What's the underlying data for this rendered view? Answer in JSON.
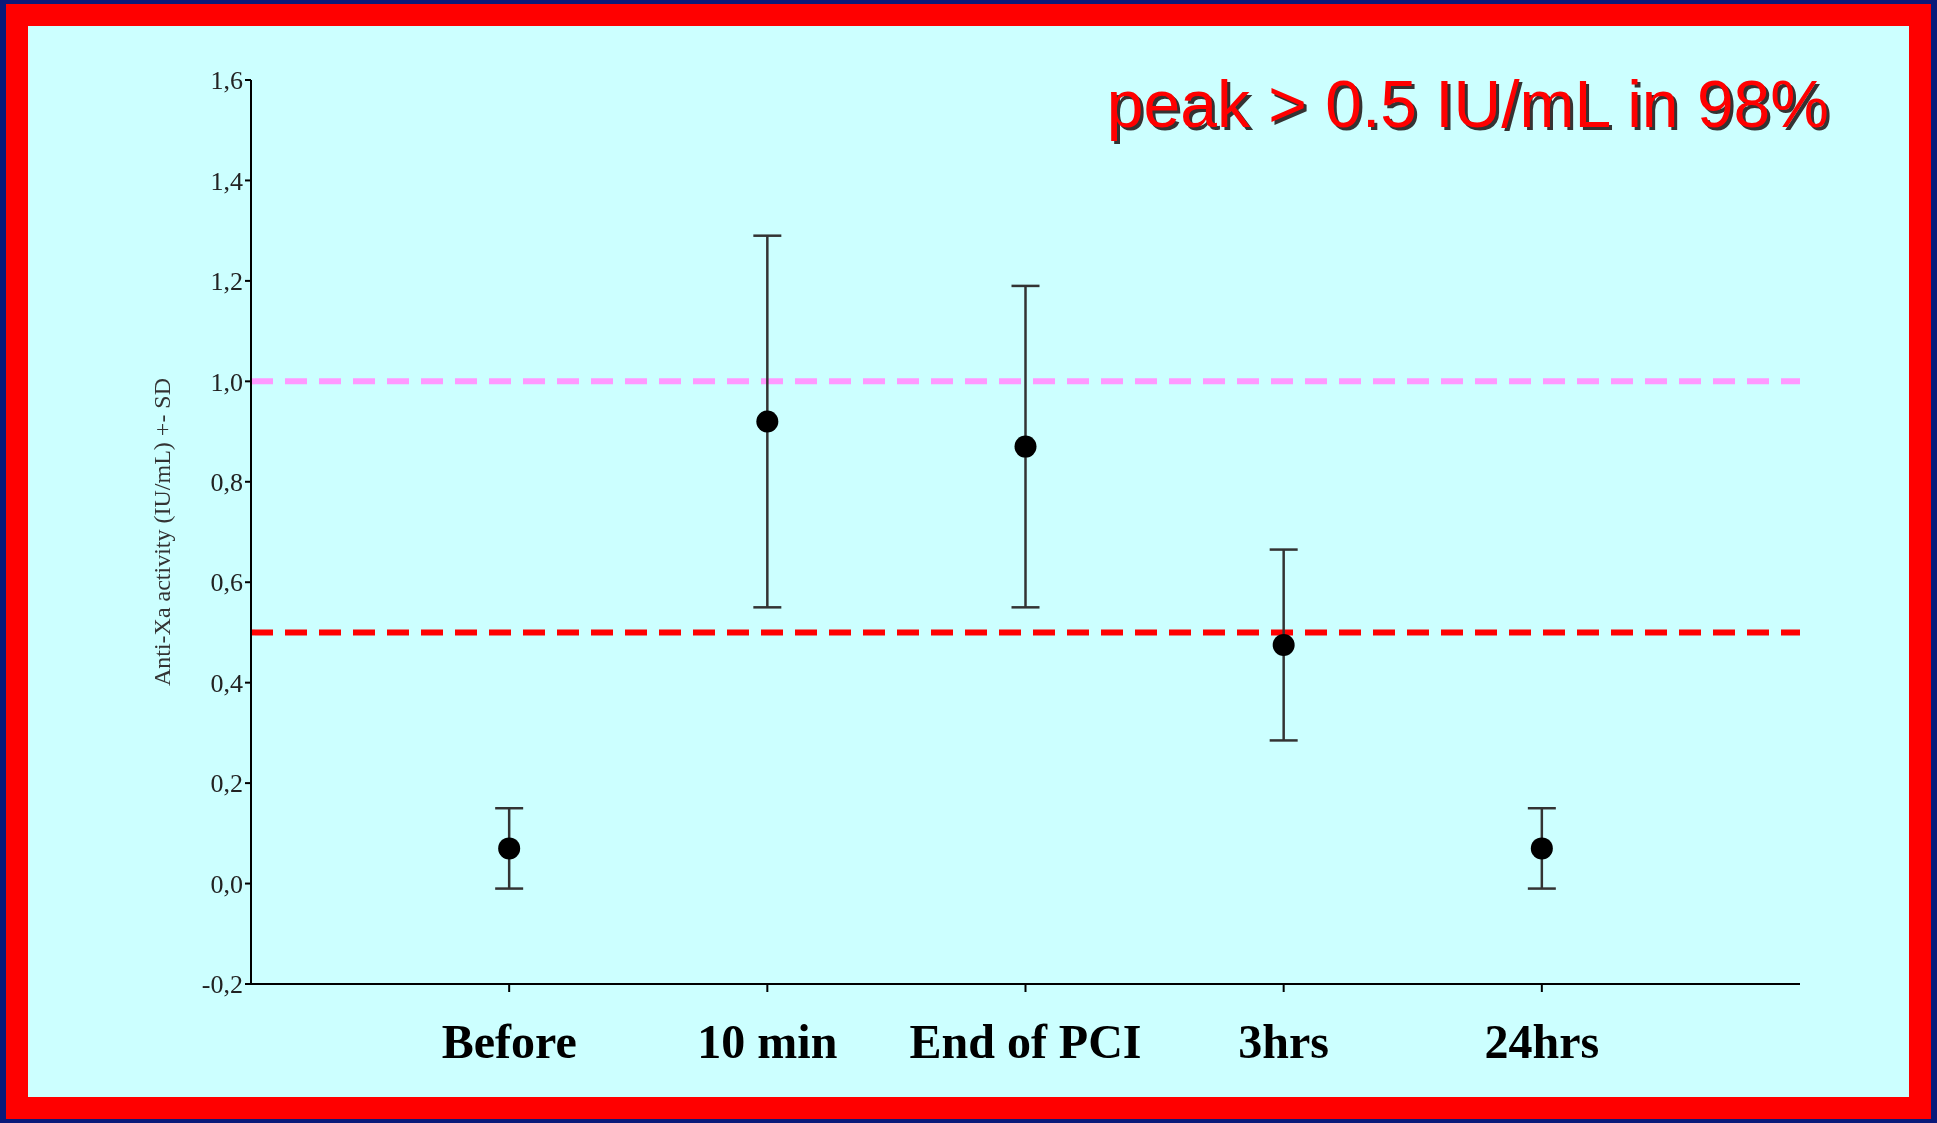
{
  "chart_data": {
    "type": "scatter",
    "ylabel": "Anti-Xa activity (IU/mL) +- SD",
    "categories": [
      "Before",
      "10 min",
      "End of PCI",
      "3hrs",
      "24hrs"
    ],
    "values": [
      0.07,
      0.92,
      0.87,
      0.475,
      0.07
    ],
    "errors": [
      0.08,
      0.37,
      0.32,
      0.19,
      0.08
    ],
    "color": "#000000",
    "marker": "circle",
    "ylim": [
      -0.2,
      1.6
    ],
    "yticks": [
      {
        "value": -0.2,
        "label": "-0,2"
      },
      {
        "value": 0,
        "label": "0,0"
      },
      {
        "value": 0.2,
        "label": "0,2"
      },
      {
        "value": 0.4,
        "label": "0,4"
      },
      {
        "value": 0.6,
        "label": "0,6"
      },
      {
        "value": 0.8,
        "label": "0,8"
      },
      {
        "value": 1.0,
        "label": "1,0"
      },
      {
        "value": 1.2,
        "label": "1,2"
      },
      {
        "value": 1.4,
        "label": "1,4"
      },
      {
        "value": 1.6,
        "label": "1,6"
      }
    ],
    "ref_lines": [
      {
        "axis": "y",
        "value": 1.0,
        "color": "#ff99ff",
        "line_style": "dashed"
      },
      {
        "axis": "y",
        "value": 0.5,
        "color": "#ff0000",
        "line_style": "dashed"
      }
    ],
    "annotations": [
      "peak > 0.5 IU/mL in 98%"
    ],
    "grid": false,
    "legend": false
  }
}
